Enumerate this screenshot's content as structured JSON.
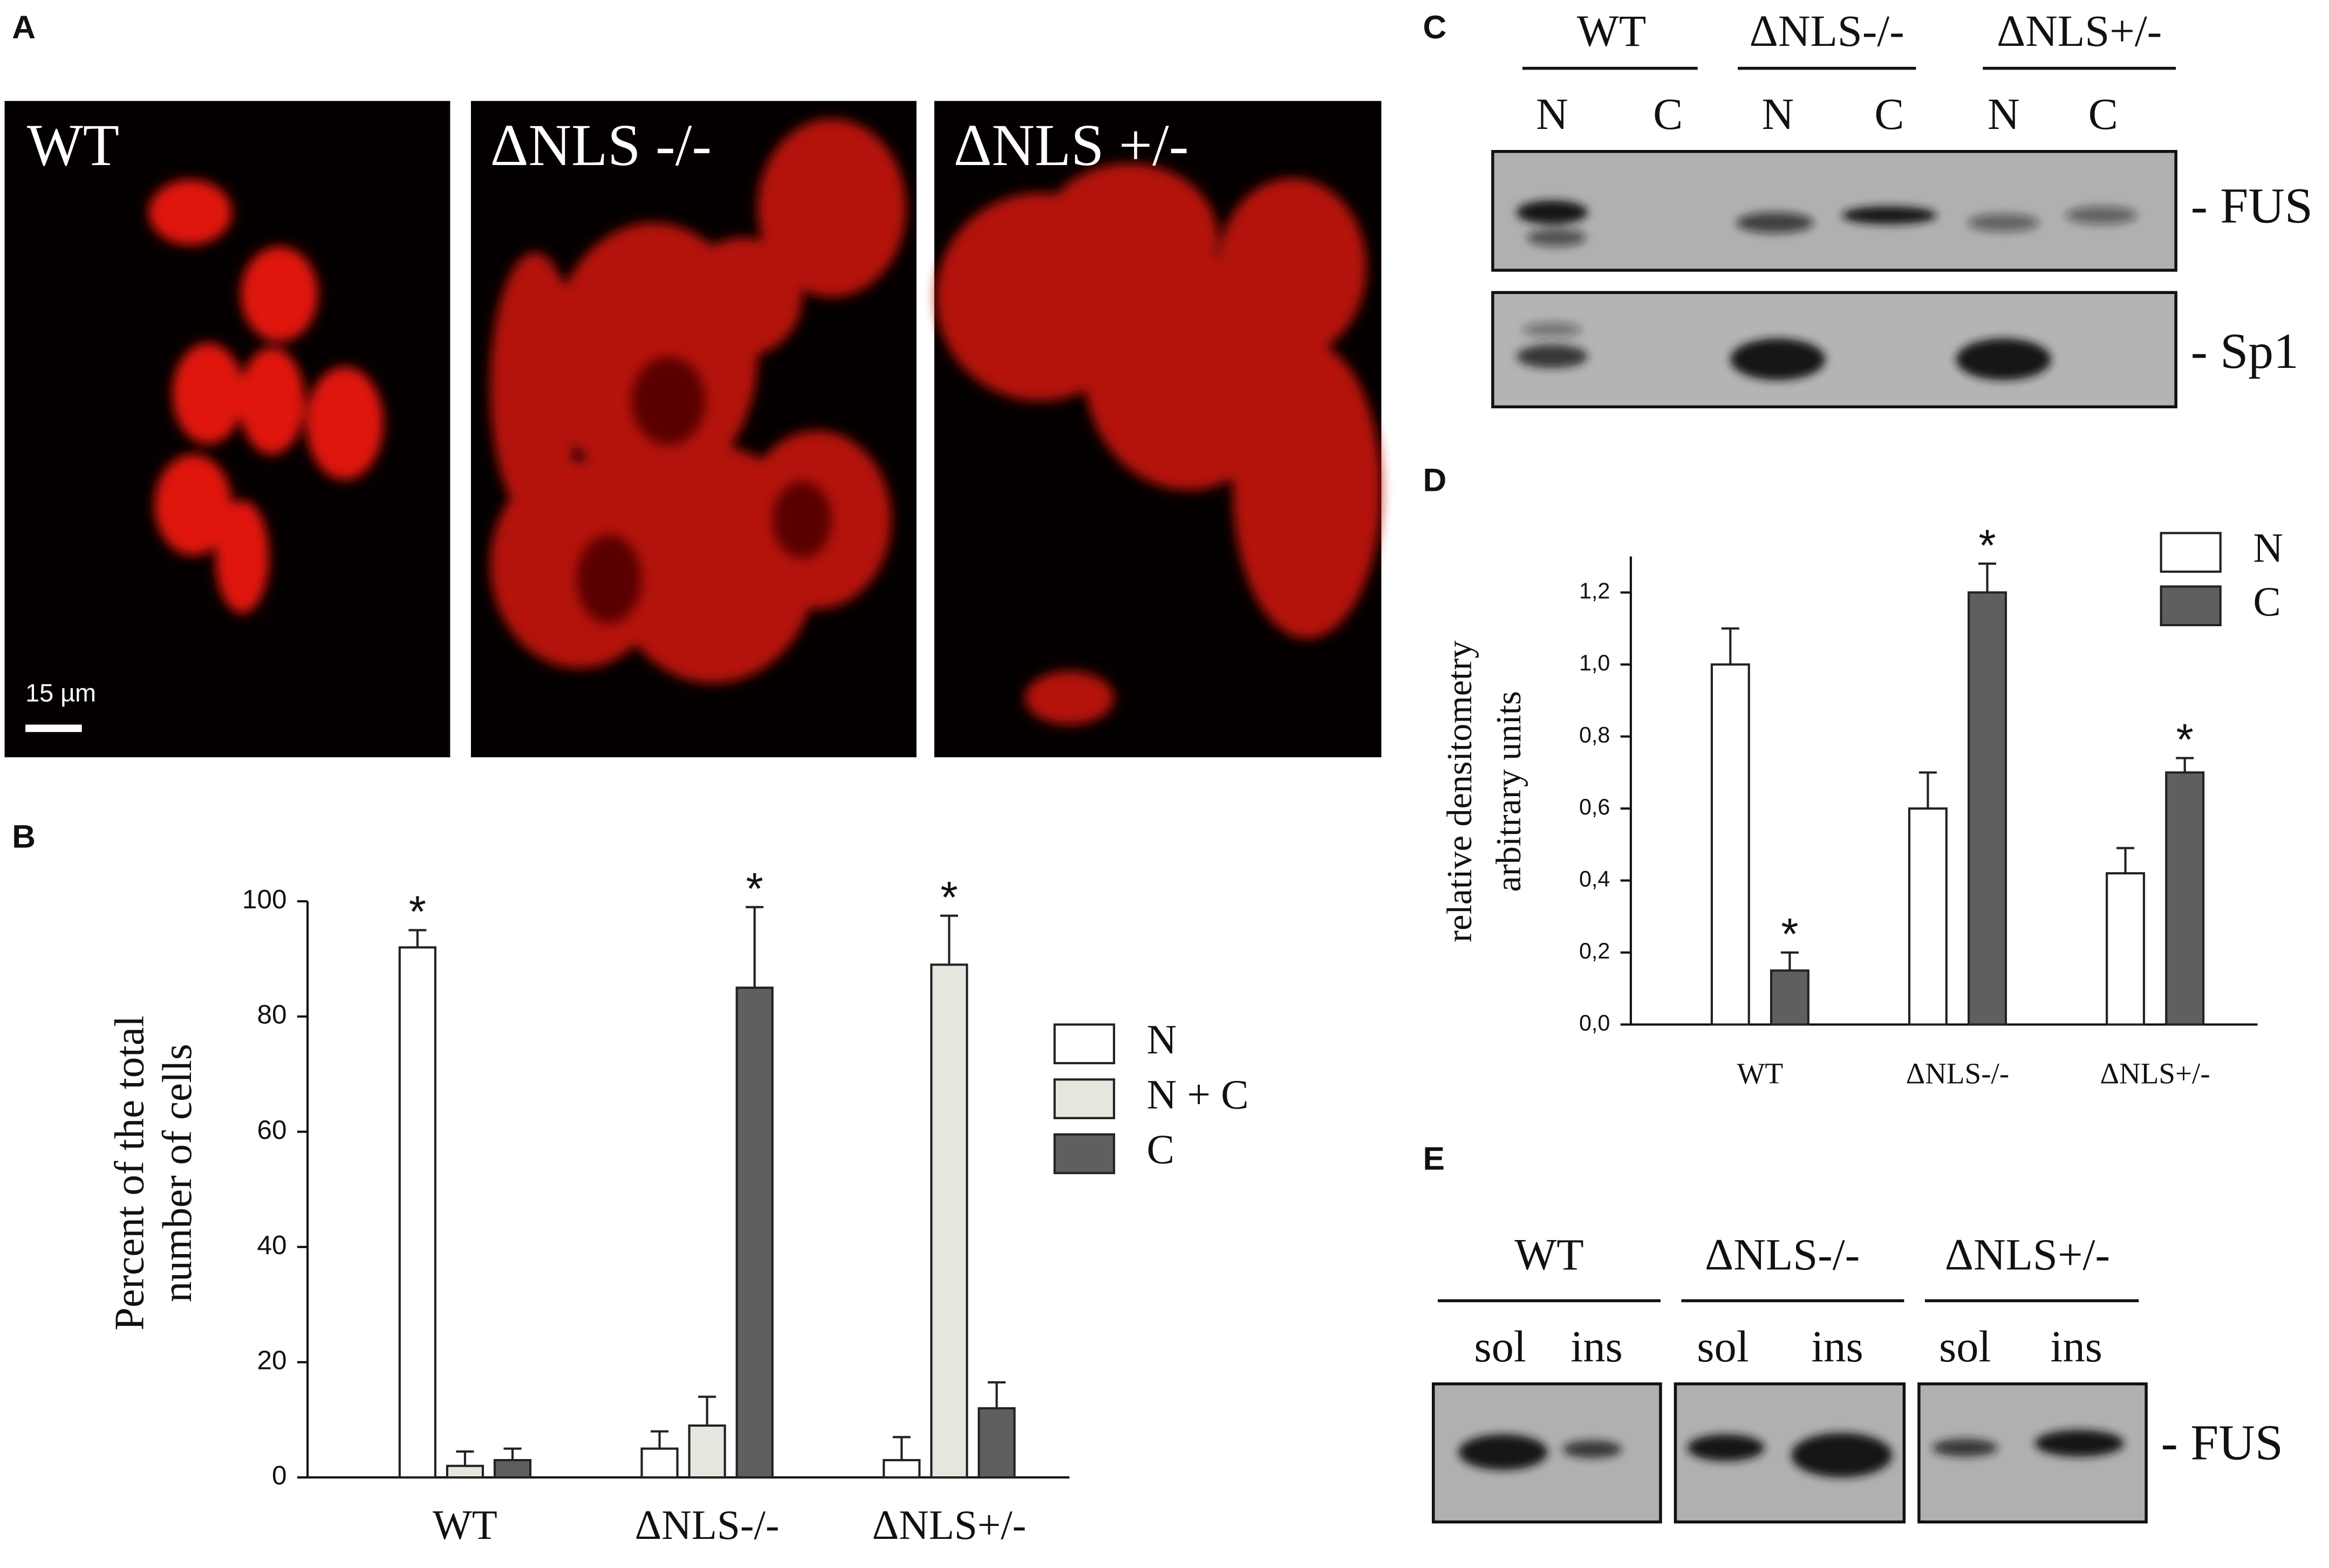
{
  "panel_labels": [
    "A",
    "B",
    "C",
    "D",
    "E"
  ],
  "micrographs": {
    "titles": [
      "WT",
      "ΔNLS -/-",
      "ΔNLS +/-"
    ],
    "scale_bar": "15 µm"
  },
  "blot_c": {
    "groups": [
      "WT",
      "ΔNLS-/-",
      "ΔNLS+/-"
    ],
    "lanes": [
      "N",
      "C",
      "N",
      "C",
      "N",
      "C"
    ],
    "rows": [
      "- FUS",
      "- Sp1"
    ]
  },
  "blot_e": {
    "groups": [
      "WT",
      "ΔNLS-/-",
      "ΔNLS+/-"
    ],
    "lanes": [
      "sol",
      "ins",
      "sol",
      "ins",
      "sol",
      "ins"
    ],
    "rows": [
      "- FUS"
    ]
  },
  "chart_data": [
    {
      "type": "bar",
      "ylabel": [
        "Percent of the total",
        "number of cells"
      ],
      "categories": [
        "WT",
        "ΔNLS-/-",
        "ΔNLS+/-"
      ],
      "series": [
        {
          "name": "N",
          "color": "#ffffff",
          "values": [
            92,
            5,
            3
          ],
          "errors": [
            3,
            3,
            4
          ],
          "annotations": [
            "*",
            null,
            null
          ]
        },
        {
          "name": "N + C",
          "color": "#e6e6df",
          "values": [
            2,
            9,
            89
          ],
          "errors": [
            2.5,
            5,
            8.5
          ],
          "annotations": [
            null,
            null,
            "*"
          ]
        },
        {
          "name": "C",
          "color": "#5f5f5f",
          "values": [
            3,
            85,
            12
          ],
          "errors": [
            2,
            14,
            4.5
          ],
          "annotations": [
            null,
            "*",
            null
          ]
        }
      ],
      "ylim": [
        0,
        100
      ],
      "yticks": [
        0,
        20,
        40,
        60,
        80,
        100
      ]
    },
    {
      "type": "bar",
      "ylabel": [
        "relative densitometry",
        "arbitrary units"
      ],
      "categories": [
        "WT",
        "ΔNLS-/-",
        "ΔNLS+/-"
      ],
      "series": [
        {
          "name": "N",
          "color": "#ffffff",
          "values": [
            1.0,
            0.6,
            0.42
          ],
          "errors": [
            0.1,
            0.1,
            0.07
          ],
          "annotations": [
            null,
            null,
            null
          ]
        },
        {
          "name": "C",
          "color": "#5f5f5f",
          "values": [
            0.15,
            1.2,
            0.7
          ],
          "errors": [
            0.05,
            0.08,
            0.04
          ],
          "annotations": [
            "*",
            "*",
            "*"
          ]
        }
      ],
      "ylim": [
        0,
        1.3
      ],
      "yticks": [
        {
          "value": 0,
          "label": "0,0"
        },
        {
          "value": 0.2,
          "label": "0,2"
        },
        {
          "value": 0.4,
          "label": "0,4"
        },
        {
          "value": 0.6,
          "label": "0,6"
        },
        {
          "value": 0.8,
          "label": "0,8"
        },
        {
          "value": 1.0,
          "label": "1,0"
        },
        {
          "value": 1.2,
          "label": "1,2"
        }
      ]
    }
  ]
}
